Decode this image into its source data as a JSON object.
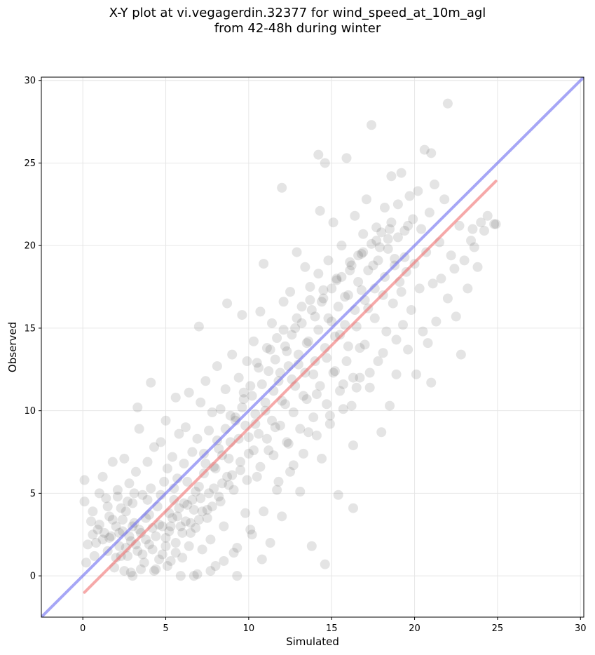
{
  "chart_data": {
    "type": "scatter",
    "title_line1": "X-Y plot at vi.vegagerdin.32377 for wind_speed_at_10m_agl",
    "title_line2": "from 42-48h during winter",
    "xlabel": "Simulated",
    "ylabel": "Observed",
    "xlim": [
      -2.5,
      30.2
    ],
    "ylim": [
      -2.5,
      30.2
    ],
    "x_ticks": [
      0,
      5,
      10,
      15,
      20,
      25,
      30
    ],
    "y_ticks": [
      0,
      5,
      10,
      15,
      20,
      25,
      30
    ],
    "grid": true,
    "colors": {
      "points": "#404040",
      "identity_line": "#6b6bf0",
      "fit_line": "#f07070"
    },
    "identity_line": {
      "x": [
        -2.5,
        30.2
      ],
      "y": [
        -2.5,
        30.2
      ]
    },
    "fit_line": {
      "x": [
        0.1,
        24.9
      ],
      "y": [
        -1.0,
        23.9
      ]
    },
    "points": [
      [
        0.1,
        5.8
      ],
      [
        0.1,
        4.5
      ],
      [
        0.2,
        0.8
      ],
      [
        0.3,
        1.9
      ],
      [
        0.5,
        3.3
      ],
      [
        0.6,
        2.5
      ],
      [
        0.7,
        1.2
      ],
      [
        0.9,
        2.8
      ],
      [
        1.0,
        5.0
      ],
      [
        1.2,
        2.2
      ],
      [
        1.2,
        6.0
      ],
      [
        1.4,
        4.7
      ],
      [
        1.5,
        1.5
      ],
      [
        1.6,
        3.6
      ],
      [
        1.7,
        2.4
      ],
      [
        1.8,
        6.9
      ],
      [
        1.9,
        0.5
      ],
      [
        2.0,
        3.0
      ],
      [
        2.1,
        5.2
      ],
      [
        2.2,
        1.8
      ],
      [
        2.3,
        4.1
      ],
      [
        2.4,
        2.7
      ],
      [
        2.5,
        7.1
      ],
      [
        2.5,
        0.3
      ],
      [
        2.6,
        3.9
      ],
      [
        2.7,
        1.2
      ],
      [
        2.8,
        5.6
      ],
      [
        2.9,
        2.1
      ],
      [
        3.0,
        4.4
      ],
      [
        3.0,
        0.0
      ],
      [
        3.1,
        3.2
      ],
      [
        3.2,
        6.3
      ],
      [
        3.3,
        10.2
      ],
      [
        3.3,
        1.5
      ],
      [
        3.4,
        8.9
      ],
      [
        3.5,
        2.6
      ],
      [
        3.6,
        4.9
      ],
      [
        3.7,
        0.8
      ],
      [
        3.8,
        3.5
      ],
      [
        3.9,
        6.9
      ],
      [
        4.0,
        1.9
      ],
      [
        4.1,
        11.7
      ],
      [
        4.1,
        5.3
      ],
      [
        4.2,
        2.9
      ],
      [
        4.3,
        7.8
      ],
      [
        4.4,
        0.4
      ],
      [
        4.5,
        4.2
      ],
      [
        4.6,
        3.1
      ],
      [
        4.7,
        8.1
      ],
      [
        4.8,
        1.3
      ],
      [
        4.9,
        5.7
      ],
      [
        5.0,
        9.4
      ],
      [
        5.0,
        2.3
      ],
      [
        5.1,
        6.5
      ],
      [
        5.2,
        3.8
      ],
      [
        5.3,
        0.9
      ],
      [
        5.4,
        7.2
      ],
      [
        5.5,
        4.6
      ],
      [
        5.6,
        10.8
      ],
      [
        5.6,
        2.0
      ],
      [
        5.7,
        5.9
      ],
      [
        5.8,
        8.6
      ],
      [
        5.9,
        3.0
      ],
      [
        6.0,
        1.1
      ],
      [
        6.1,
        6.8
      ],
      [
        6.2,
        9.0
      ],
      [
        6.3,
        4.3
      ],
      [
        6.4,
        11.1
      ],
      [
        6.5,
        2.6
      ],
      [
        6.6,
        7.5
      ],
      [
        6.7,
        0.0
      ],
      [
        6.8,
        5.1
      ],
      [
        6.9,
        8.3
      ],
      [
        7.0,
        15.1
      ],
      [
        7.0,
        3.4
      ],
      [
        7.1,
        10.5
      ],
      [
        7.2,
        1.6
      ],
      [
        7.3,
        6.2
      ],
      [
        7.4,
        11.8
      ],
      [
        7.5,
        4.0
      ],
      [
        7.6,
        8.8
      ],
      [
        7.7,
        2.2
      ],
      [
        7.8,
        9.9
      ],
      [
        7.9,
        6.6
      ],
      [
        8.0,
        0.6
      ],
      [
        8.1,
        12.7
      ],
      [
        8.2,
        4.8
      ],
      [
        8.3,
        10.1
      ],
      [
        8.4,
        7.3
      ],
      [
        8.5,
        3.0
      ],
      [
        8.6,
        11.3
      ],
      [
        8.7,
        16.5
      ],
      [
        8.8,
        5.5
      ],
      [
        8.9,
        8.1
      ],
      [
        9.0,
        13.4
      ],
      [
        9.1,
        1.4
      ],
      [
        9.2,
        9.6
      ],
      [
        9.3,
        0.0
      ],
      [
        9.4,
        12.0
      ],
      [
        9.5,
        6.4
      ],
      [
        9.6,
        15.8
      ],
      [
        9.7,
        10.7
      ],
      [
        9.8,
        3.8
      ],
      [
        9.9,
        13.0
      ],
      [
        10.0,
        8.4
      ],
      [
        10.1,
        11.5
      ],
      [
        10.2,
        2.5
      ],
      [
        10.3,
        14.2
      ],
      [
        10.4,
        9.2
      ],
      [
        10.5,
        6.0
      ],
      [
        10.6,
        12.6
      ],
      [
        10.7,
        16.0
      ],
      [
        10.8,
        1.0
      ],
      [
        10.9,
        18.9
      ],
      [
        11.0,
        10.0
      ],
      [
        11.1,
        13.8
      ],
      [
        11.2,
        7.6
      ],
      [
        11.3,
        2.0
      ],
      [
        11.4,
        15.3
      ],
      [
        11.5,
        11.2
      ],
      [
        11.6,
        9.0
      ],
      [
        11.7,
        14.4
      ],
      [
        11.8,
        5.7
      ],
      [
        11.9,
        12.3
      ],
      [
        12.0,
        23.5
      ],
      [
        12.0,
        3.6
      ],
      [
        12.1,
        16.6
      ],
      [
        12.2,
        10.4
      ],
      [
        12.3,
        13.6
      ],
      [
        12.4,
        8.0
      ],
      [
        12.5,
        17.2
      ],
      [
        12.6,
        11.9
      ],
      [
        12.7,
        6.7
      ],
      [
        12.8,
        15.0
      ],
      [
        12.9,
        19.6
      ],
      [
        13.0,
        12.8
      ],
      [
        13.1,
        5.1
      ],
      [
        13.2,
        16.3
      ],
      [
        13.3,
        10.9
      ],
      [
        13.4,
        18.7
      ],
      [
        13.5,
        14.1
      ],
      [
        13.6,
        8.7
      ],
      [
        13.7,
        17.5
      ],
      [
        13.8,
        1.8
      ],
      [
        13.9,
        12.2
      ],
      [
        14.0,
        15.7
      ],
      [
        14.1,
        11.0
      ],
      [
        14.2,
        25.5
      ],
      [
        14.2,
        18.3
      ],
      [
        14.3,
        22.1
      ],
      [
        14.4,
        7.1
      ],
      [
        14.5,
        16.8
      ],
      [
        14.6,
        0.7
      ],
      [
        14.6,
        25.0
      ],
      [
        14.7,
        13.2
      ],
      [
        14.8,
        19.1
      ],
      [
        14.9,
        9.7
      ],
      [
        15.0,
        15.4
      ],
      [
        15.1,
        21.4
      ],
      [
        15.2,
        12.4
      ],
      [
        15.3,
        17.9
      ],
      [
        15.4,
        4.9
      ],
      [
        15.5,
        14.6
      ],
      [
        15.6,
        20.0
      ],
      [
        15.7,
        11.6
      ],
      [
        15.8,
        16.9
      ],
      [
        15.9,
        25.3
      ],
      [
        16.0,
        13.9
      ],
      [
        16.1,
        18.5
      ],
      [
        16.2,
        10.3
      ],
      [
        16.3,
        7.9
      ],
      [
        16.3,
        4.1
      ],
      [
        16.4,
        21.8
      ],
      [
        16.5,
        15.1
      ],
      [
        16.6,
        19.4
      ],
      [
        16.7,
        12.0
      ],
      [
        16.8,
        17.3
      ],
      [
        16.9,
        20.7
      ],
      [
        17.0,
        14.0
      ],
      [
        17.1,
        22.8
      ],
      [
        17.2,
        16.2
      ],
      [
        17.3,
        11.4
      ],
      [
        17.4,
        27.3
      ],
      [
        17.5,
        18.8
      ],
      [
        17.6,
        15.6
      ],
      [
        17.7,
        21.1
      ],
      [
        17.8,
        13.0
      ],
      [
        17.9,
        19.9
      ],
      [
        18.0,
        8.7
      ],
      [
        18.1,
        17.0
      ],
      [
        18.2,
        22.3
      ],
      [
        18.3,
        14.8
      ],
      [
        18.4,
        20.4
      ],
      [
        18.5,
        10.3
      ],
      [
        18.6,
        24.2
      ],
      [
        18.7,
        16.5
      ],
      [
        18.8,
        19.2
      ],
      [
        18.9,
        12.2
      ],
      [
        19.0,
        22.5
      ],
      [
        19.1,
        17.8
      ],
      [
        19.2,
        24.4
      ],
      [
        19.3,
        15.2
      ],
      [
        19.4,
        20.9
      ],
      [
        19.5,
        18.4
      ],
      [
        19.6,
        13.7
      ],
      [
        19.7,
        23.0
      ],
      [
        19.8,
        16.1
      ],
      [
        19.9,
        21.6
      ],
      [
        20.0,
        18.9
      ],
      [
        20.1,
        12.2
      ],
      [
        20.2,
        23.3
      ],
      [
        20.3,
        17.4
      ],
      [
        20.4,
        21.0
      ],
      [
        20.5,
        14.8
      ],
      [
        20.6,
        25.8
      ],
      [
        20.7,
        19.6
      ],
      [
        20.8,
        14.1
      ],
      [
        20.9,
        22.0
      ],
      [
        21.0,
        11.7
      ],
      [
        21.0,
        25.6
      ],
      [
        21.1,
        17.7
      ],
      [
        21.2,
        23.7
      ],
      [
        21.3,
        15.4
      ],
      [
        21.5,
        20.2
      ],
      [
        21.6,
        18.0
      ],
      [
        21.8,
        22.8
      ],
      [
        22.0,
        28.6
      ],
      [
        22.0,
        16.8
      ],
      [
        22.2,
        19.4
      ],
      [
        22.4,
        18.6
      ],
      [
        22.5,
        15.7
      ],
      [
        22.7,
        21.2
      ],
      [
        22.8,
        13.4
      ],
      [
        23.0,
        19.1
      ],
      [
        23.2,
        17.4
      ],
      [
        23.4,
        20.3
      ],
      [
        23.5,
        21.0
      ],
      [
        23.6,
        19.9
      ],
      [
        23.8,
        18.7
      ],
      [
        24.0,
        21.4
      ],
      [
        24.2,
        20.9
      ],
      [
        24.4,
        21.8
      ],
      [
        24.8,
        21.3
      ],
      [
        24.9,
        21.3
      ],
      [
        1.6,
        2.3
      ],
      [
        2.0,
        1.1
      ],
      [
        2.2,
        2.6
      ],
      [
        2.4,
        3.4
      ],
      [
        2.6,
        1.7
      ],
      [
        2.8,
        2.4
      ],
      [
        3.0,
        3.0
      ],
      [
        3.2,
        1.9
      ],
      [
        3.4,
        2.8
      ],
      [
        3.6,
        1.3
      ],
      [
        3.8,
        2.2
      ],
      [
        4.0,
        3.7
      ],
      [
        4.2,
        1.6
      ],
      [
        4.4,
        2.4
      ],
      [
        4.6,
        1.0
      ],
      [
        4.8,
        3.0
      ],
      [
        5.0,
        1.8
      ],
      [
        5.2,
        2.7
      ],
      [
        5.4,
        3.5
      ],
      [
        5.6,
        1.4
      ],
      [
        5.8,
        4.1
      ],
      [
        6.0,
        2.6
      ],
      [
        6.2,
        3.3
      ],
      [
        6.4,
        1.8
      ],
      [
        6.6,
        4.6
      ],
      [
        6.8,
        2.9
      ],
      [
        7.0,
        5.4
      ],
      [
        7.2,
        3.9
      ],
      [
        7.4,
        6.8
      ],
      [
        7.6,
        5.0
      ],
      [
        7.8,
        4.2
      ],
      [
        8.0,
        6.5
      ],
      [
        8.2,
        7.7
      ],
      [
        8.4,
        5.6
      ],
      [
        8.6,
        8.9
      ],
      [
        8.8,
        7.1
      ],
      [
        9.0,
        6.1
      ],
      [
        9.2,
        9.4
      ],
      [
        9.4,
        8.3
      ],
      [
        9.6,
        10.2
      ],
      [
        9.8,
        9.1
      ],
      [
        10.0,
        7.4
      ],
      [
        10.2,
        10.9
      ],
      [
        10.4,
        9.8
      ],
      [
        10.6,
        8.6
      ],
      [
        10.8,
        11.6
      ],
      [
        11.0,
        10.5
      ],
      [
        11.2,
        12.4
      ],
      [
        11.4,
        9.4
      ],
      [
        11.6,
        13.1
      ],
      [
        11.8,
        11.8
      ],
      [
        12.0,
        10.6
      ],
      [
        12.2,
        13.9
      ],
      [
        12.4,
        12.7
      ],
      [
        12.6,
        14.6
      ],
      [
        12.8,
        11.5
      ],
      [
        13.0,
        13.4
      ],
      [
        13.2,
        15.3
      ],
      [
        13.4,
        12.3
      ],
      [
        13.6,
        14.2
      ],
      [
        13.8,
        16.1
      ],
      [
        14.0,
        13.0
      ],
      [
        14.2,
        14.9
      ],
      [
        14.4,
        16.6
      ],
      [
        14.6,
        13.8
      ],
      [
        14.8,
        15.6
      ],
      [
        15.0,
        17.4
      ],
      [
        15.2,
        14.5
      ],
      [
        15.4,
        16.3
      ],
      [
        15.6,
        18.1
      ],
      [
        15.8,
        15.2
      ],
      [
        16.0,
        17.0
      ],
      [
        16.2,
        18.8
      ],
      [
        16.4,
        16.1
      ],
      [
        16.6,
        17.8
      ],
      [
        16.8,
        19.5
      ],
      [
        17.0,
        16.7
      ],
      [
        17.2,
        18.5
      ],
      [
        17.4,
        20.1
      ],
      [
        17.6,
        17.4
      ],
      [
        17.8,
        19.1
      ],
      [
        18.0,
        20.8
      ],
      [
        18.2,
        18.1
      ],
      [
        18.4,
        19.8
      ],
      [
        18.6,
        21.4
      ],
      [
        18.8,
        18.8
      ],
      [
        19.0,
        20.5
      ],
      [
        19.2,
        17.2
      ],
      [
        19.4,
        19.3
      ],
      [
        19.6,
        21.2
      ],
      [
        0.6,
        3.9
      ],
      [
        0.8,
        2.0
      ],
      [
        1.0,
        3.1
      ],
      [
        1.3,
        2.6
      ],
      [
        1.5,
        4.2
      ],
      [
        1.8,
        3.4
      ],
      [
        2.1,
        4.8
      ],
      [
        2.3,
        1.2
      ],
      [
        2.7,
        4.5
      ],
      [
        2.9,
        0.2
      ],
      [
        3.1,
        5.0
      ],
      [
        3.5,
        0.4
      ],
      [
        3.9,
        4.6
      ],
      [
        4.3,
        0.3
      ],
      [
        4.7,
        4.9
      ],
      [
        5.1,
        0.6
      ],
      [
        5.5,
        5.3
      ],
      [
        5.9,
        0.0
      ],
      [
        6.3,
        5.7
      ],
      [
        6.9,
        0.1
      ],
      [
        7.3,
        7.4
      ],
      [
        7.7,
        0.3
      ],
      [
        8.1,
        8.2
      ],
      [
        8.5,
        0.9
      ],
      [
        8.9,
        9.7
      ],
      [
        9.3,
        1.7
      ],
      [
        9.7,
        11.1
      ],
      [
        10.1,
        2.8
      ],
      [
        10.5,
        12.9
      ],
      [
        10.9,
        3.9
      ],
      [
        11.3,
        13.7
      ],
      [
        11.7,
        5.2
      ],
      [
        12.1,
        14.9
      ],
      [
        12.5,
        6.3
      ],
      [
        12.9,
        15.6
      ],
      [
        13.3,
        7.4
      ],
      [
        13.7,
        16.7
      ],
      [
        14.1,
        8.5
      ],
      [
        14.5,
        17.3
      ],
      [
        14.9,
        9.2
      ],
      [
        15.3,
        18.0
      ],
      [
        15.7,
        10.1
      ],
      [
        16.1,
        19.0
      ],
      [
        16.5,
        11.4
      ],
      [
        16.9,
        19.6
      ],
      [
        17.3,
        12.3
      ],
      [
        17.7,
        20.3
      ],
      [
        18.1,
        13.5
      ],
      [
        18.5,
        21.0
      ],
      [
        18.9,
        14.3
      ],
      [
        5.3,
        3.0
      ],
      [
        5.7,
        3.6
      ],
      [
        6.1,
        4.4
      ],
      [
        6.5,
        3.2
      ],
      [
        6.7,
        4.0
      ],
      [
        7.1,
        4.7
      ],
      [
        7.5,
        3.5
      ],
      [
        7.9,
        5.3
      ],
      [
        8.3,
        4.5
      ],
      [
        8.7,
        6.0
      ],
      [
        9.1,
        5.2
      ],
      [
        9.5,
        6.9
      ],
      [
        9.9,
        5.8
      ],
      [
        10.3,
        7.6
      ],
      [
        10.7,
        6.6
      ],
      [
        11.1,
        8.3
      ],
      [
        11.5,
        7.3
      ],
      [
        11.9,
        9.1
      ],
      [
        12.3,
        8.1
      ],
      [
        12.7,
        9.9
      ],
      [
        13.1,
        8.9
      ],
      [
        13.5,
        10.7
      ],
      [
        13.9,
        9.6
      ],
      [
        14.3,
        11.5
      ],
      [
        14.7,
        10.4
      ],
      [
        15.1,
        12.3
      ],
      [
        15.5,
        11.2
      ],
      [
        15.9,
        13.0
      ],
      [
        16.3,
        12.0
      ],
      [
        16.7,
        13.8
      ]
    ]
  }
}
